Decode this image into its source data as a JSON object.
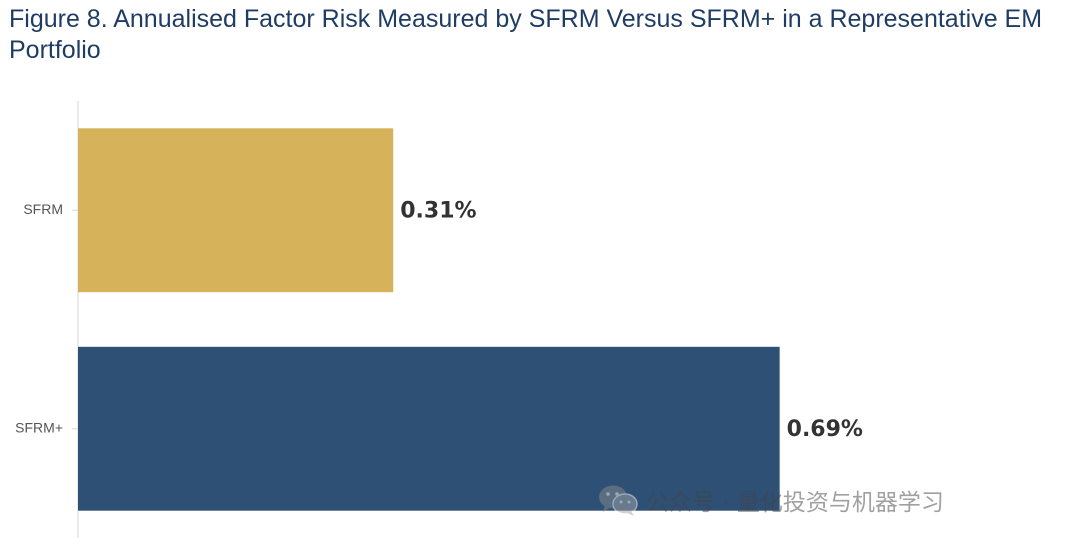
{
  "title": "Figure 8. Annualised Factor Risk Measured by SFRM Versus SFRM+ in a Representative EM Portfolio",
  "watermark": {
    "text": "公众号 · 量化投资与机器学习",
    "icon": "wechat-icon"
  },
  "chart_data": {
    "type": "bar",
    "orientation": "horizontal",
    "categories": [
      "SFRM",
      "SFRM+"
    ],
    "values": [
      0.31,
      0.69
    ],
    "data_labels": [
      "0.31%",
      "0.69%"
    ],
    "unit": "%",
    "colors": [
      "#d6b25a",
      "#2f5075"
    ],
    "xlim": [
      0,
      0.77
    ],
    "grid": false,
    "legend": "none"
  },
  "colors": {
    "title": "#1f3d64",
    "axis": "#e3e3e3",
    "tick_label": "#555555",
    "data_label": "#333333"
  }
}
